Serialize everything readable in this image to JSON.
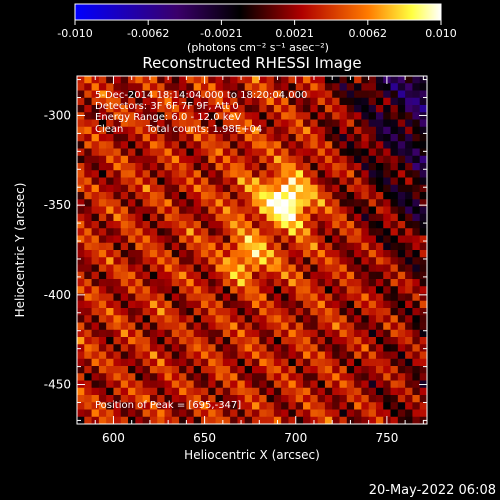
{
  "chart_data": {
    "type": "heatmap",
    "title": "Reconstructed RHESSI Image",
    "colorbar": {
      "ticks": [
        "-0.010",
        "-0.0062",
        "-0.0021",
        "0.0021",
        "0.0062",
        "0.010"
      ],
      "range": [
        -0.01,
        0.01
      ],
      "unit": "(photons cm⁻² s⁻¹ asec⁻²)",
      "colors": [
        "#0000ff",
        "#000000",
        "#ff0000",
        "#ffff00",
        "#ffffff"
      ]
    },
    "xlabel": "Heliocentric X (arcsec)",
    "ylabel": "Heliocentric Y (arcsec)",
    "xlim": [
      580,
      772
    ],
    "ylim": [
      -472,
      -278
    ],
    "xticks": [
      600,
      650,
      700,
      750
    ],
    "yticks": [
      -300,
      -350,
      -400,
      -450
    ],
    "annotations": {
      "time": "5-Dec-2014 18:14:04.000 to 18:20:04.000",
      "detectors": "Detectors: 3F 6F 7F 9F, Att 0",
      "energy": "Energy Range: 6.0 - 12.0 keV",
      "clean": "Clean",
      "counts": "Total counts: 1.98E+04",
      "peak": "Position of Peak = [695,-347]"
    },
    "peak": {
      "x": 695,
      "y": -347
    },
    "secondary_source": {
      "x": 673,
      "y": -380
    },
    "footer_date": "20-May-2022 06:08"
  }
}
